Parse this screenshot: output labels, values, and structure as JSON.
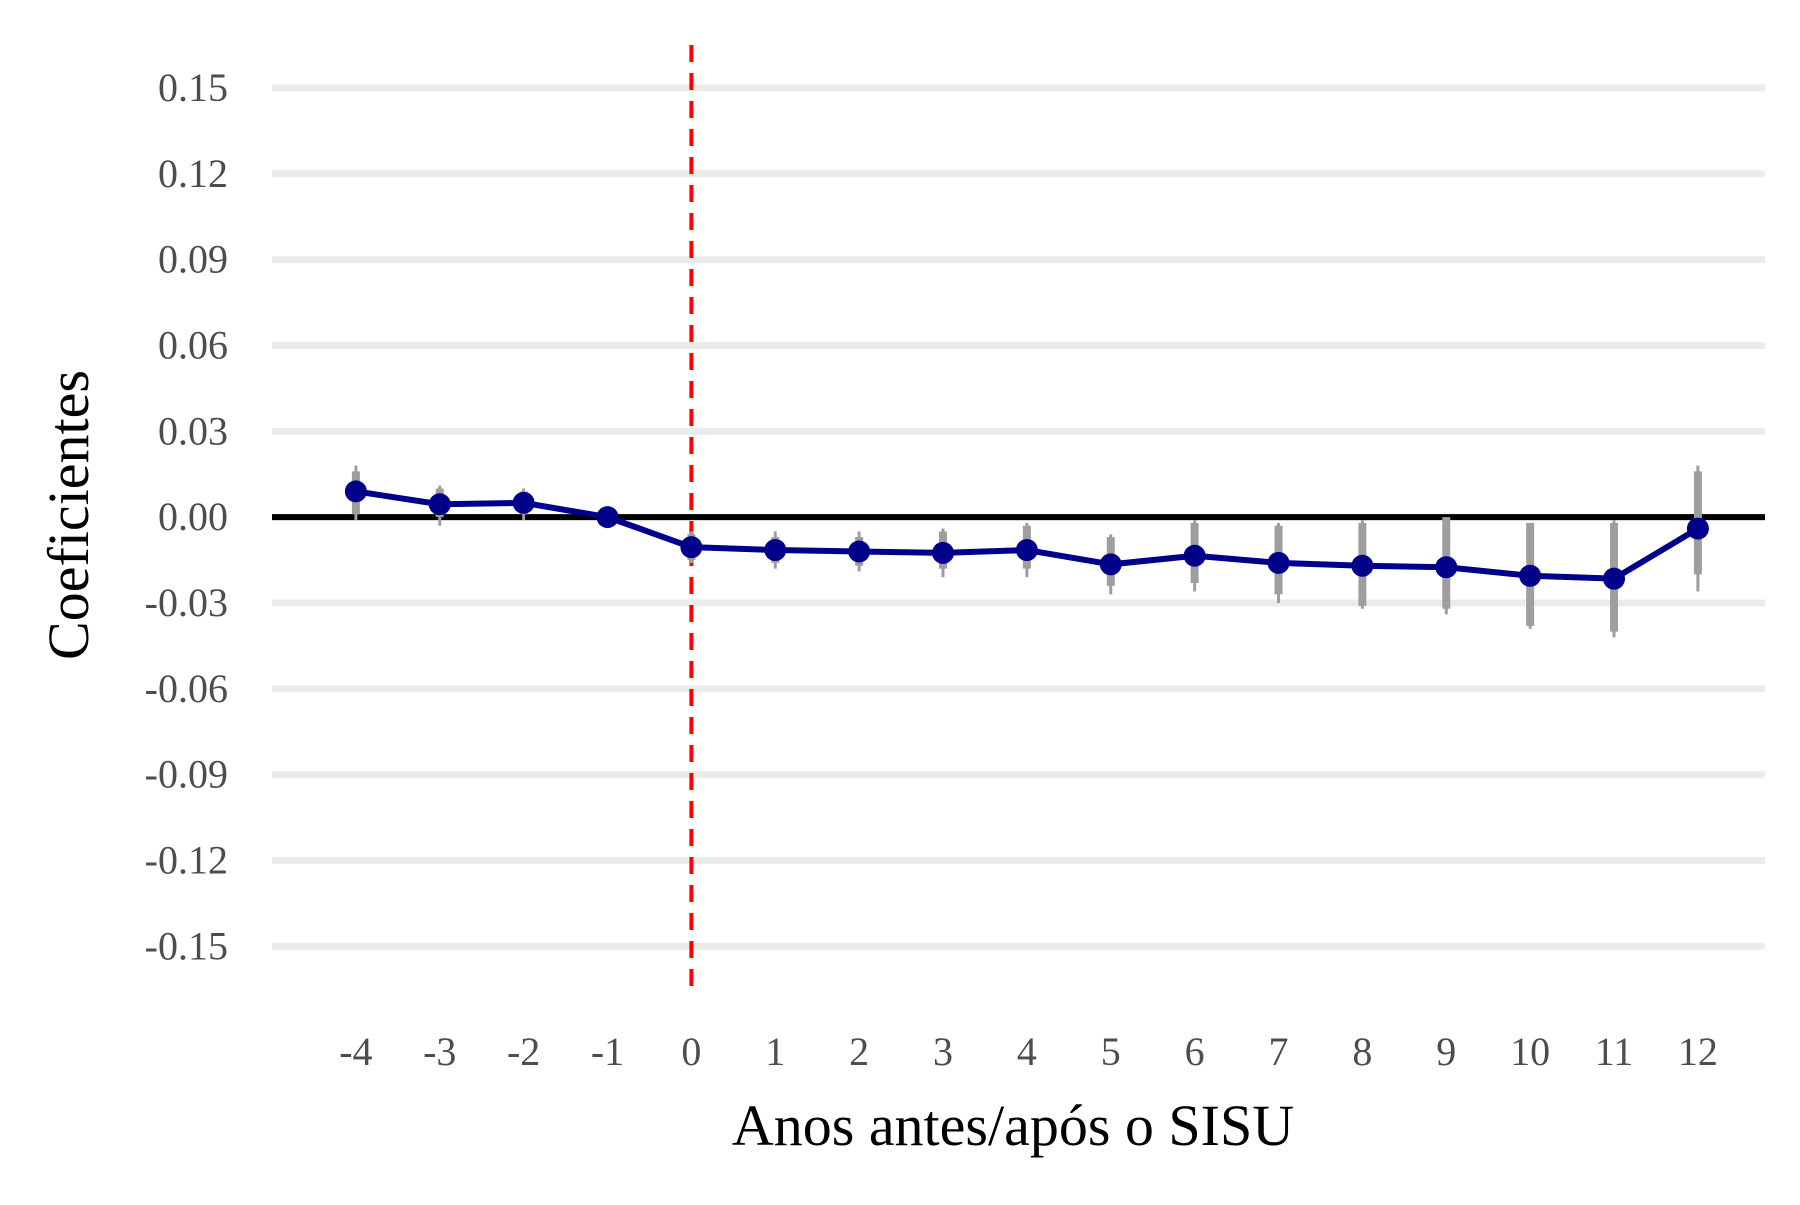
{
  "chart_data": {
    "type": "line",
    "title": "",
    "xlabel": "Anos antes/após o SISU",
    "ylabel": "Coeficientes",
    "x": [
      -4,
      -3,
      -2,
      -1,
      0,
      1,
      2,
      3,
      4,
      5,
      6,
      7,
      8,
      9,
      10,
      11,
      12
    ],
    "x_tick_labels": [
      "-4",
      "-3",
      "-2",
      "-1",
      "0",
      "1",
      "2",
      "3",
      "4",
      "5",
      "6",
      "7",
      "8",
      "9",
      "10",
      "11",
      "12"
    ],
    "xlim": [
      -5.0,
      12.8
    ],
    "ylim": [
      -0.167,
      0.165
    ],
    "y_ticks": [
      0.15,
      0.12,
      0.09,
      0.06,
      0.03,
      0.0,
      -0.03,
      -0.06,
      -0.09,
      -0.12,
      -0.15
    ],
    "y_tick_labels": [
      "0.15",
      "0.12",
      "0.09",
      "0.06",
      "0.03",
      "0.00",
      "-0.03",
      "-0.06",
      "-0.09",
      "-0.12",
      "-0.15"
    ],
    "series": [
      {
        "values": [
          0.009,
          0.0045,
          0.005,
          0.0,
          -0.0105,
          -0.0115,
          -0.012,
          -0.0125,
          -0.0115,
          -0.0165,
          -0.0135,
          -0.016,
          -0.017,
          -0.0175,
          -0.0205,
          -0.0215,
          -0.004
        ],
        "ci_inner_low": [
          0.001,
          0.0,
          0.001,
          0.0,
          -0.015,
          -0.016,
          -0.017,
          -0.018,
          -0.018,
          -0.024,
          -0.023,
          -0.027,
          -0.031,
          -0.032,
          -0.038,
          -0.04,
          -0.02
        ],
        "ci_inner_high": [
          0.016,
          0.01,
          0.009,
          0.0,
          -0.006,
          -0.007,
          -0.007,
          -0.005,
          -0.003,
          -0.007,
          -0.002,
          -0.003,
          -0.002,
          0.0,
          -0.002,
          -0.002,
          0.016
        ],
        "ci_outer_low": [
          -0.001,
          -0.003,
          -0.001,
          0.0,
          -0.016,
          -0.018,
          -0.019,
          -0.021,
          -0.021,
          -0.027,
          -0.026,
          -0.03,
          -0.032,
          -0.034,
          -0.039,
          -0.042,
          -0.026
        ],
        "ci_outer_high": [
          0.018,
          0.011,
          0.01,
          0.0,
          -0.005,
          -0.005,
          -0.005,
          -0.004,
          -0.002,
          -0.006,
          -0.001,
          -0.002,
          -0.001,
          0.0,
          -0.002,
          -0.001,
          0.018
        ]
      }
    ],
    "reference_lines": {
      "horizontal_y": 0.0,
      "vertical_x": 0
    },
    "grid": "horizontal-major",
    "legend": "none",
    "colors": {
      "line": "#00008B",
      "marker": "#00008B",
      "ci": "#9e9e9e",
      "zero_line": "#000000",
      "vline": "#FF0000",
      "grid": "#EBEBEB"
    }
  }
}
